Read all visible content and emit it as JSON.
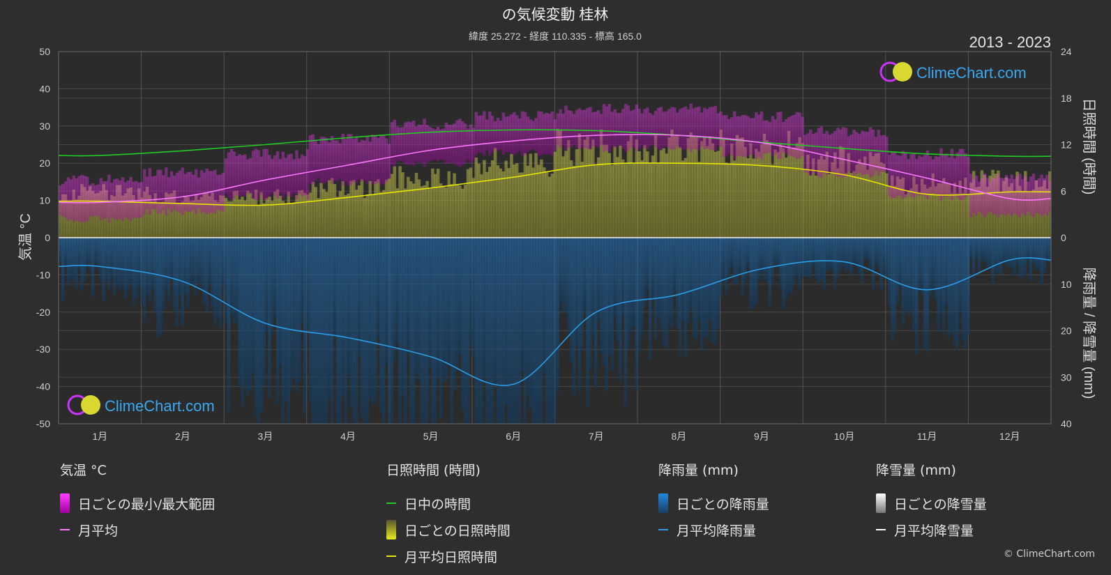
{
  "chart_data": {
    "type": "area",
    "title": "の気候変動 桂林",
    "subtitle": "緯度 25.272 - 経度 110.335 - 標高 165.0",
    "period": "2013 - 2023",
    "watermark": "ClimeChart.com",
    "copyright": "© ClimeChart.com",
    "x_categories": [
      "1月",
      "2月",
      "3月",
      "4月",
      "5月",
      "6月",
      "7月",
      "8月",
      "9月",
      "10月",
      "11月",
      "12月"
    ],
    "y_left": {
      "label": "気温 °C",
      "min": -50,
      "max": 50,
      "ticks": [
        50,
        40,
        30,
        20,
        10,
        0,
        -10,
        -20,
        -30,
        -40,
        -50
      ]
    },
    "y_right_top": {
      "label": "日照時間 (時間)",
      "min": 0,
      "max": 24,
      "ticks": [
        24,
        18,
        12,
        6,
        0
      ]
    },
    "y_right_bottom": {
      "label": "降雨量 / 降雪量 (mm)",
      "min": 0,
      "max": 40,
      "ticks": [
        0,
        10,
        20,
        30,
        40
      ]
    },
    "series": [
      {
        "name": "日中の時間",
        "axis": "sunshine_hours",
        "color": "#22cc22",
        "values": [
          10.6,
          11.2,
          12.0,
          12.9,
          13.6,
          13.9,
          13.8,
          13.2,
          12.3,
          11.5,
          10.8,
          10.5
        ]
      },
      {
        "name": "月平均日照時間",
        "axis": "sunshine_hours",
        "color": "#e6e600",
        "values": [
          4.7,
          4.4,
          4.2,
          5.2,
          6.4,
          7.8,
          9.4,
          9.6,
          9.3,
          8.1,
          5.6,
          5.9
        ]
      },
      {
        "name": "月平均",
        "axis": "temperature_c",
        "color": "#ff77ff",
        "values": [
          9.5,
          11.0,
          15.5,
          19.5,
          23.5,
          26.0,
          27.5,
          27.5,
          25.5,
          21.0,
          16.0,
          10.5
        ]
      },
      {
        "name": "月平均降雨量",
        "axis": "precipitation_mm",
        "color": "#2a9ee8",
        "values": [
          6.2,
          9.4,
          18.4,
          21.5,
          25.6,
          31.5,
          16.0,
          12.2,
          6.7,
          5.2,
          11.2,
          4.8
        ]
      },
      {
        "name": "月平均降雪量",
        "axis": "precipitation_mm",
        "color": "#ffffff",
        "values": [
          0,
          0,
          0,
          0,
          0,
          0,
          0,
          0,
          0,
          0,
          0,
          0
        ]
      }
    ],
    "daily_temperature_range": {
      "name": "日ごとの最小/最大範囲",
      "color": "#e020e0",
      "min": [
        6,
        8,
        12,
        16,
        21,
        24,
        25,
        25,
        23,
        18,
        12,
        7
      ],
      "max": [
        14,
        16,
        21,
        25,
        29,
        31,
        33,
        33,
        31,
        27,
        21,
        15
      ]
    },
    "daily_sunshine": {
      "name": "日ごとの日照時間",
      "color": "#b0b030"
    },
    "daily_rainfall": {
      "name": "日ごとの降雨量",
      "color": "#1e6aa8"
    },
    "daily_snowfall": {
      "name": "日ごとの降雪量",
      "color": "#cccccc"
    },
    "grid": true
  },
  "legend": {
    "temperature": {
      "head": "気温 °C",
      "range": "日ごとの最小/最大範囲",
      "mean": "月平均"
    },
    "sunshine": {
      "head": "日照時間 (時間)",
      "daylight": "日中の時間",
      "daily": "日ごとの日照時間",
      "mean": "月平均日照時間"
    },
    "rain": {
      "head": "降雨量 (mm)",
      "daily": "日ごとの降雨量",
      "mean": "月平均降雨量"
    },
    "snow": {
      "head": "降雪量 (mm)",
      "daily": "日ごとの降雪量",
      "mean": "月平均降雪量"
    }
  }
}
